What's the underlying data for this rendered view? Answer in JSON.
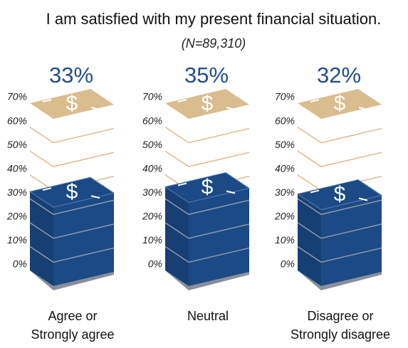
{
  "chart_data": {
    "type": "bar",
    "title": "I am satisfied with my present financial situation.",
    "subtitle": "(N=89,310)",
    "categories": [
      "Agree or\nStrongly agree",
      "Neutral",
      "Disagree or\nStrongly disagree"
    ],
    "values": [
      33,
      35,
      32
    ],
    "value_labels": [
      "33%",
      "35%",
      "32%"
    ],
    "symbol": "$",
    "color": "#1b4a86",
    "empty_color": "#d9bd8f",
    "ylim": [
      0,
      70
    ],
    "yticks": [
      {
        "value": 0,
        "label": "0%"
      },
      {
        "value": 10,
        "label": "10%"
      },
      {
        "value": 20,
        "label": "20%"
      },
      {
        "value": 30,
        "label": "30%"
      },
      {
        "value": 40,
        "label": "40%"
      },
      {
        "value": 50,
        "label": "50%"
      },
      {
        "value": 60,
        "label": "60%"
      },
      {
        "value": 70,
        "label": "70%"
      }
    ]
  }
}
